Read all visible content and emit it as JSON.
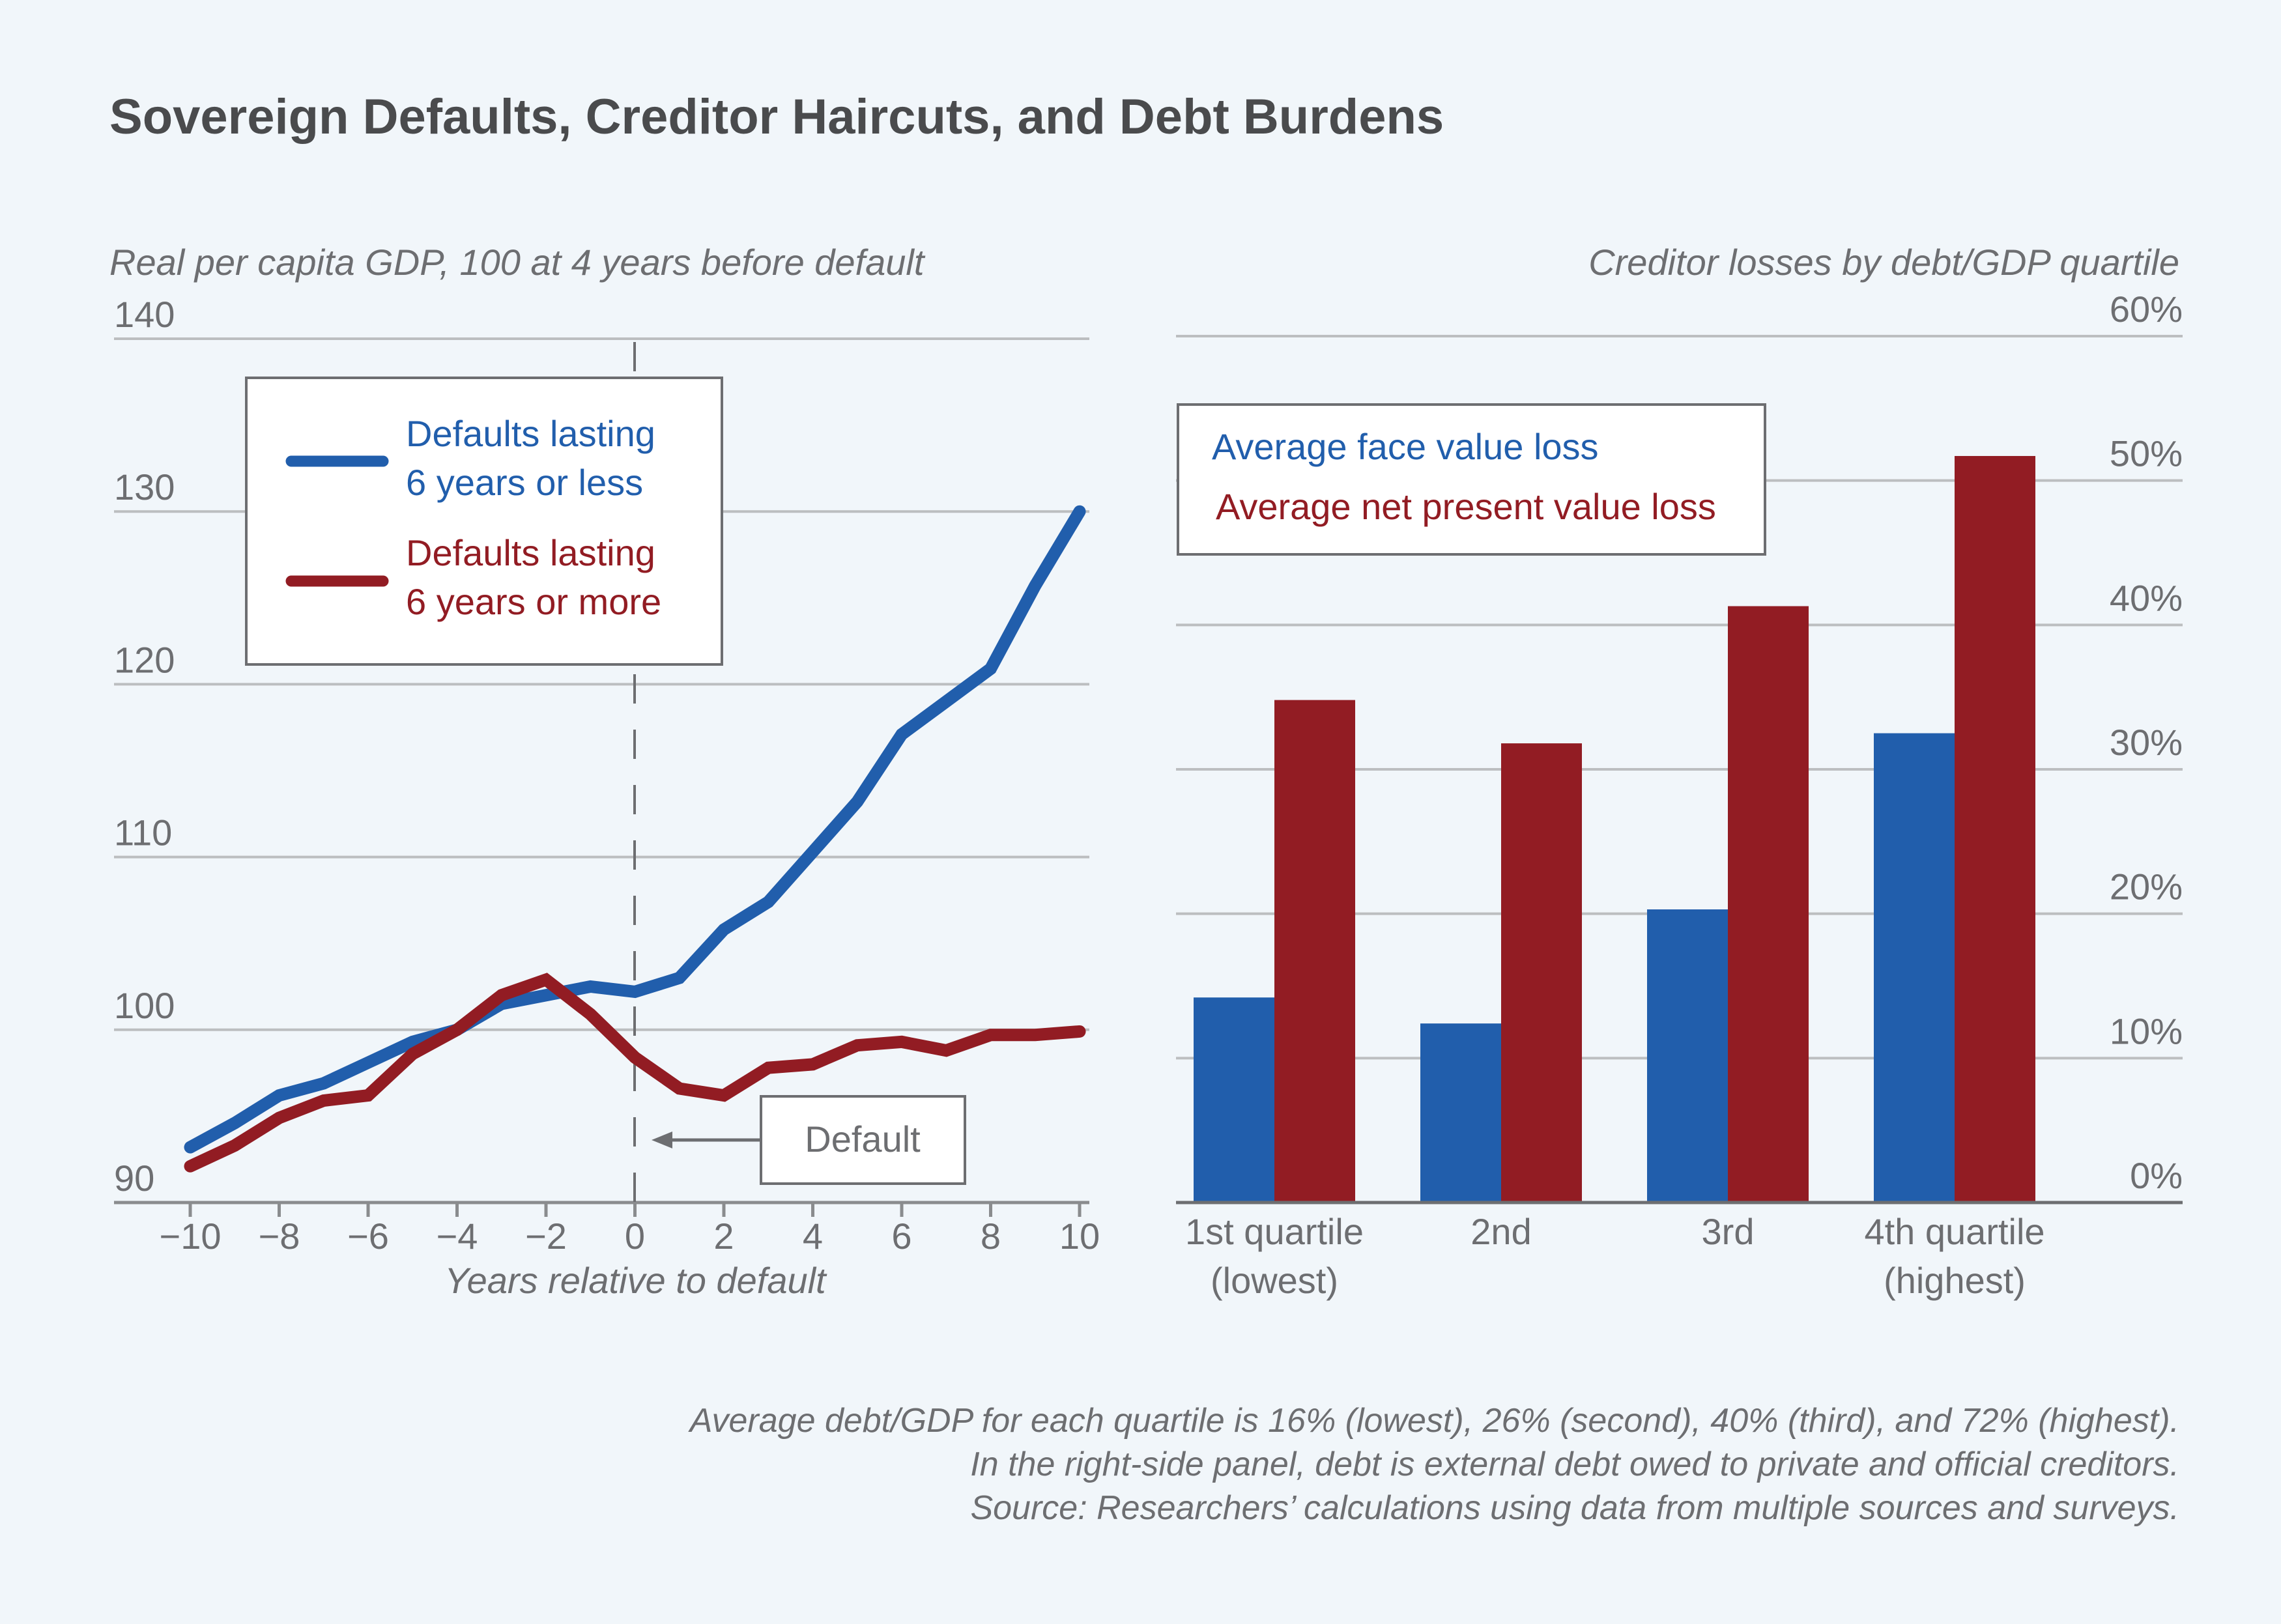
{
  "title": "Sovereign Defaults, Creditor Haircuts, and Debt Burdens",
  "colors": {
    "blue": "#215eac",
    "red": "#921c23",
    "grid": "#bcbec0",
    "text": "#6d6e71",
    "background": "#f1f6fa"
  },
  "chart_data": [
    {
      "type": "line",
      "subtitle": "Real per capita GDP, 100 at 4 years before default",
      "xlabel": "Years relative to default",
      "ylabel": "",
      "x": [
        -10,
        -9,
        -8,
        -7,
        -6,
        -5,
        -4,
        -3,
        -2,
        -1,
        0,
        1,
        2,
        3,
        4,
        5,
        6,
        7,
        8,
        9,
        10
      ],
      "xlim": [
        -10,
        10
      ],
      "ylim": [
        90,
        140
      ],
      "xticks": [
        "−10",
        "−8",
        "−6",
        "−4",
        "−2",
        "0",
        "2",
        "4",
        "6",
        "8",
        "10"
      ],
      "xtick_values": [
        -10,
        -8,
        -6,
        -4,
        -2,
        0,
        2,
        4,
        6,
        8,
        10
      ],
      "yticks": [
        "90",
        "100",
        "110",
        "120",
        "130",
        "140"
      ],
      "ytick_values": [
        90,
        100,
        110,
        120,
        130,
        140
      ],
      "grid": true,
      "legend_position": "top-left",
      "series": [
        {
          "name": "Defaults lasting 6 years or less",
          "legend_lines": [
            "Defaults lasting",
            "6 years or less"
          ],
          "color": "#215eac",
          "values": [
            93.2,
            94.6,
            96.2,
            96.9,
            98.1,
            99.3,
            100.0,
            101.5,
            102.0,
            102.5,
            102.2,
            103.0,
            105.8,
            107.4,
            110.3,
            113.2,
            117.1,
            119.0,
            120.9,
            125.7,
            130.0
          ]
        },
        {
          "name": "Defaults lasting 6 years or more",
          "legend_lines": [
            "Defaults lasting",
            "6 years or more"
          ],
          "color": "#921c23",
          "values": [
            92.1,
            93.3,
            94.9,
            95.9,
            96.2,
            98.6,
            100.0,
            102.0,
            102.9,
            100.9,
            98.4,
            96.6,
            96.2,
            97.8,
            98.0,
            99.1,
            99.3,
            98.8,
            99.7,
            99.7,
            99.9
          ]
        }
      ],
      "annotations": [
        {
          "text": "Default",
          "x": 0,
          "style": "dashed vertical line with arrow label"
        }
      ]
    },
    {
      "type": "bar",
      "subtitle": "Creditor losses by debt/GDP quartile",
      "categories": [
        [
          "1st quartile",
          "(lowest)"
        ],
        [
          "2nd"
        ],
        [
          "3rd"
        ],
        [
          "4th quartile",
          "(highest)"
        ]
      ],
      "ylim": [
        0,
        60
      ],
      "yticks": [
        "0%",
        "10%",
        "20%",
        "30%",
        "40%",
        "50%",
        "60%"
      ],
      "ytick_values": [
        0,
        10,
        20,
        30,
        40,
        50,
        60
      ],
      "yaxis_position": "right",
      "grid": true,
      "legend_position": "top-left",
      "series": [
        {
          "name": "Average face value loss",
          "color": "#215eac",
          "values": [
            14.2,
            12.4,
            20.3,
            32.5
          ]
        },
        {
          "name": "Average net present value loss",
          "color": "#921c23",
          "values": [
            34.8,
            31.8,
            41.3,
            51.7
          ]
        }
      ]
    }
  ],
  "footer": [
    "Average debt/GDP for each quartile is 16% (lowest), 26% (second), 40% (third), and 72% (highest).",
    "In the right-side panel, debt is external debt owed to private and official creditors.",
    "Source: Researchers’ calculations using data from multiple sources and surveys."
  ]
}
